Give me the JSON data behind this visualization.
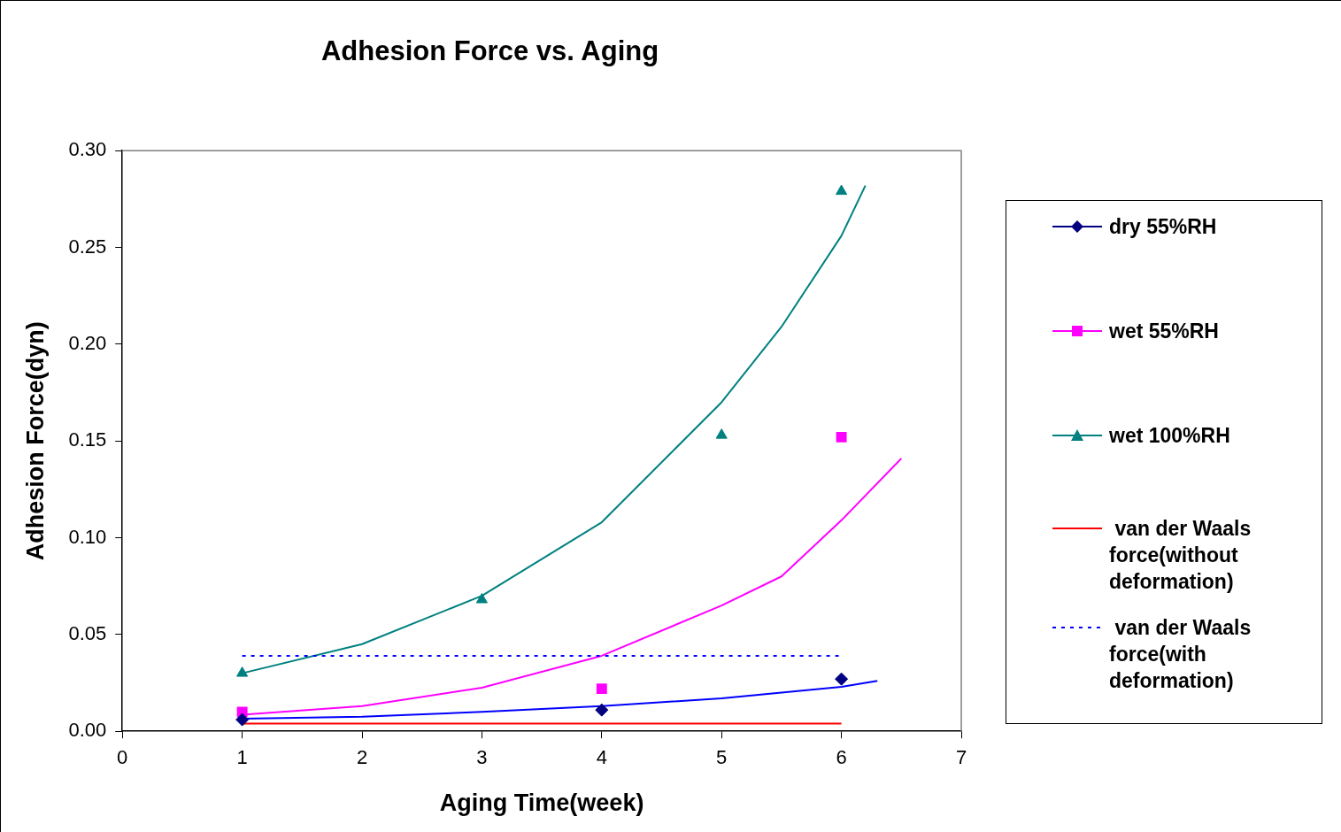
{
  "chart_data": {
    "type": "scatter",
    "title": "Adhesion Force vs. Aging",
    "xlabel": "Aging Time(week)",
    "ylabel": "Adhesion Force(dyn)",
    "xlim": [
      0,
      7
    ],
    "xticks": [
      0,
      1,
      2,
      3,
      4,
      5,
      6,
      7
    ],
    "ylim": [
      0,
      0.3
    ],
    "yticks": [
      {
        "value": 0,
        "label": "0.00"
      },
      {
        "value": 0.05,
        "label": "0.05"
      },
      {
        "value": 0.1,
        "label": "0.10"
      },
      {
        "value": 0.15,
        "label": "0.15"
      },
      {
        "value": 0.2,
        "label": "0.20"
      },
      {
        "value": 0.25,
        "label": "0.25"
      },
      {
        "value": 0.3,
        "label": "0.30"
      }
    ],
    "grid": false,
    "legend": "right",
    "series": [
      {
        "name": "dry 55%RH",
        "type": "scatter",
        "marker": "diamond",
        "color": "#000080",
        "x": [
          1,
          4,
          6
        ],
        "values": [
          0.006,
          0.011,
          0.027
        ]
      },
      {
        "name": "wet 55%RH",
        "type": "scatter",
        "marker": "square",
        "color": "#ff00ff",
        "x": [
          1,
          4,
          6
        ],
        "values": [
          0.01,
          0.022,
          0.152
        ]
      },
      {
        "name": "wet 100%RH",
        "type": "scatter",
        "marker": "triangle",
        "color": "#008080",
        "x": [
          1,
          3,
          5,
          6
        ],
        "values": [
          0.03,
          0.068,
          0.153,
          0.279
        ]
      },
      {
        "name": " van der Waals force(without deformation)",
        "type": "line",
        "marker": "none",
        "line_style": "solid",
        "color": "#ff0000",
        "x": [
          1,
          6
        ],
        "values": [
          0.004,
          0.004
        ]
      },
      {
        "name": " van der Waals force(with deformation)",
        "type": "line",
        "marker": "none",
        "line_style": "dashed",
        "color": "#0000ff",
        "x": [
          1,
          6
        ],
        "values": [
          0.039,
          0.039
        ]
      },
      {
        "type": "line",
        "marker": "none",
        "line_style": "solid",
        "color": "#0000ff",
        "x": [
          1,
          2,
          3,
          4,
          5,
          6,
          6.3
        ],
        "values": [
          0.0065,
          0.0075,
          0.01,
          0.013,
          0.017,
          0.023,
          0.026
        ]
      },
      {
        "type": "line",
        "marker": "none",
        "line_style": "solid",
        "color": "#ff00ff",
        "x": [
          1,
          2,
          3,
          4,
          5,
          5.5,
          6,
          6.5
        ],
        "values": [
          0.0085,
          0.013,
          0.0225,
          0.039,
          0.065,
          0.08,
          0.109,
          0.141
        ]
      },
      {
        "type": "line",
        "marker": "none",
        "line_style": "solid",
        "color": "#008080",
        "x": [
          1,
          2,
          3,
          4,
          5,
          5.5,
          6,
          6.2
        ],
        "values": [
          0.03,
          0.045,
          0.07,
          0.108,
          0.17,
          0.209,
          0.256,
          0.282
        ]
      }
    ]
  }
}
